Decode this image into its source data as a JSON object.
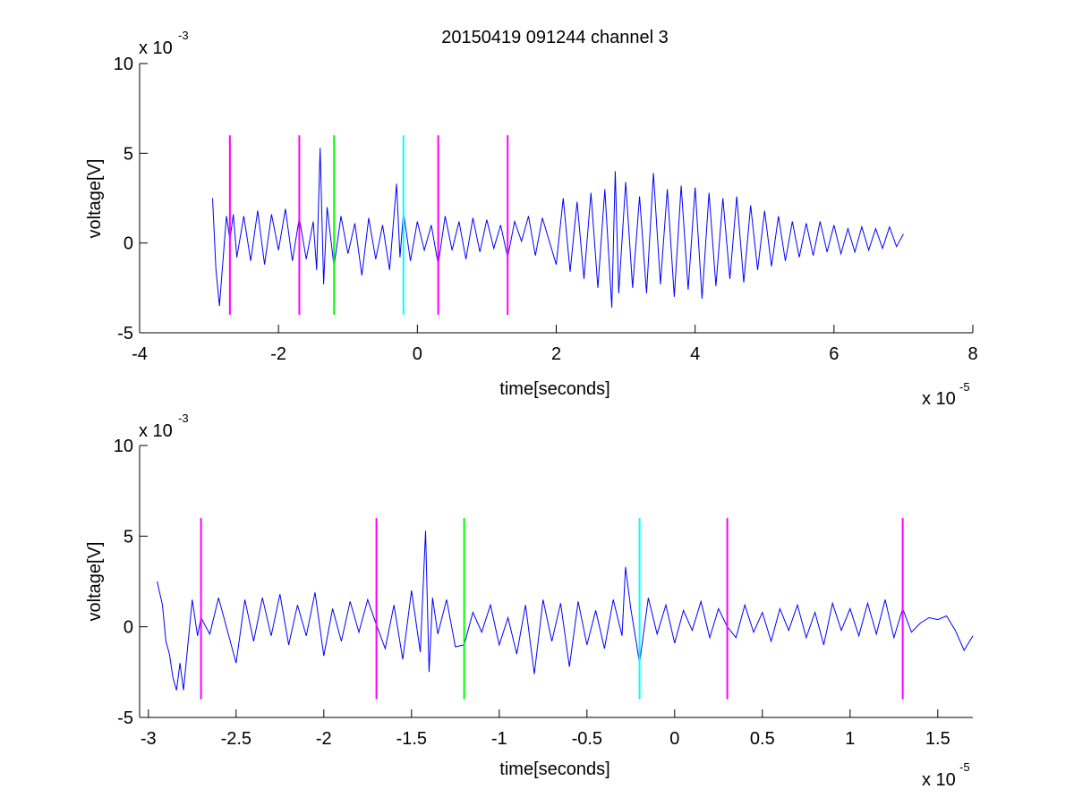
{
  "figure": {
    "title": "20150419 091244 channel 3",
    "colors": {
      "background": "#ffffff",
      "signal": "#0000ff",
      "magenta": "#ff00ff",
      "green": "#00ff00",
      "cyan": "#00ffff"
    }
  },
  "chart_data": [
    {
      "type": "line",
      "title": "20150419 091244 channel 3",
      "xlabel": "time[seconds]",
      "ylabel": "voltage[V]",
      "x_multiplier_label": "x 10",
      "x_multiplier_exp": "-5",
      "y_multiplier_label": "x 10",
      "y_multiplier_exp": "-3",
      "xlim": [
        -4,
        8
      ],
      "ylim": [
        -5,
        10
      ],
      "xticks": [
        -4,
        -2,
        0,
        2,
        4,
        6,
        8
      ],
      "xtick_labels": [
        "-4",
        "-2",
        "0",
        "2",
        "4",
        "6",
        "8"
      ],
      "yticks": [
        -5,
        0,
        5,
        10
      ],
      "ytick_labels": [
        "-5",
        "0",
        "5",
        "10"
      ],
      "grid": false,
      "series": [
        {
          "color": "#0000ff",
          "x_start": -2.95,
          "x_end": 7.0,
          "x": [
            -2.95,
            -2.9,
            -2.85,
            -2.8,
            -2.75,
            -2.7,
            -2.65,
            -2.6,
            -2.5,
            -2.4,
            -2.3,
            -2.2,
            -2.1,
            -2.0,
            -1.9,
            -1.8,
            -1.7,
            -1.6,
            -1.5,
            -1.45,
            -1.4,
            -1.35,
            -1.3,
            -1.2,
            -1.1,
            -1.0,
            -0.9,
            -0.8,
            -0.7,
            -0.6,
            -0.5,
            -0.4,
            -0.3,
            -0.25,
            -0.2,
            -0.1,
            0.0,
            0.1,
            0.2,
            0.3,
            0.4,
            0.5,
            0.6,
            0.7,
            0.8,
            0.9,
            1.0,
            1.1,
            1.2,
            1.3,
            1.4,
            1.5,
            1.6,
            1.7,
            1.8,
            2.0,
            2.1,
            2.2,
            2.3,
            2.4,
            2.5,
            2.6,
            2.7,
            2.8,
            2.85,
            2.9,
            3.0,
            3.1,
            3.2,
            3.3,
            3.4,
            3.5,
            3.6,
            3.7,
            3.8,
            3.9,
            4.0,
            4.1,
            4.2,
            4.3,
            4.4,
            4.5,
            4.6,
            4.7,
            4.8,
            4.9,
            5.0,
            5.1,
            5.2,
            5.3,
            5.4,
            5.5,
            5.6,
            5.7,
            5.8,
            5.9,
            6.0,
            6.1,
            6.2,
            6.3,
            6.4,
            6.5,
            6.6,
            6.7,
            6.8,
            6.9,
            7.0
          ],
          "values": [
            2.5,
            -1.5,
            -3.5,
            -1.0,
            1.5,
            0.2,
            1.6,
            -0.8,
            1.5,
            -1.0,
            1.8,
            -1.2,
            1.6,
            -0.4,
            1.9,
            -1.0,
            1.4,
            -0.9,
            1.2,
            -1.5,
            5.3,
            -2.3,
            2.0,
            -1.3,
            1.5,
            -0.6,
            1.1,
            -1.8,
            1.4,
            -0.9,
            1.0,
            -1.5,
            3.3,
            -0.8,
            1.7,
            -1.0,
            1.2,
            -0.4,
            1.0,
            -1.2,
            1.5,
            -0.4,
            1.2,
            -0.9,
            1.4,
            -0.5,
            1.3,
            -0.3,
            1.0,
            -0.8,
            1.2,
            0.1,
            1.5,
            -0.7,
            1.4,
            -1.2,
            2.5,
            -1.6,
            2.3,
            -2.0,
            2.8,
            -2.5,
            3.0,
            -3.6,
            4.0,
            -2.8,
            3.4,
            -2.5,
            2.6,
            -2.8,
            3.9,
            -2.3,
            3.0,
            -3.0,
            3.2,
            -2.6,
            3.1,
            -3.1,
            2.8,
            -2.4,
            2.5,
            -2.0,
            2.6,
            -2.2,
            2.1,
            -1.5,
            1.8,
            -1.3,
            1.5,
            -1.0,
            1.2,
            -0.8,
            1.1,
            -0.7,
            1.2,
            -0.5,
            1.0,
            -0.6,
            0.8,
            -0.5,
            0.9,
            -0.4,
            0.8,
            -0.3,
            0.9,
            -0.2,
            0.5
          ]
        }
      ],
      "vertical_markers": [
        {
          "x": -2.7,
          "y0": -4,
          "y1": 6,
          "color": "#ff00ff"
        },
        {
          "x": -1.7,
          "y0": -4,
          "y1": 6,
          "color": "#ff00ff"
        },
        {
          "x": -1.2,
          "y0": -4,
          "y1": 6,
          "color": "#00ff00"
        },
        {
          "x": -0.2,
          "y0": -4,
          "y1": 6,
          "color": "#00ffff"
        },
        {
          "x": 0.3,
          "y0": -4,
          "y1": 6,
          "color": "#ff00ff"
        },
        {
          "x": 1.3,
          "y0": -4,
          "y1": 6,
          "color": "#ff00ff"
        }
      ]
    },
    {
      "type": "line",
      "xlabel": "time[seconds]",
      "ylabel": "voltage[V]",
      "x_multiplier_label": "x 10",
      "x_multiplier_exp": "-5",
      "y_multiplier_label": "x 10",
      "y_multiplier_exp": "-3",
      "xlim": [
        -3.05,
        1.7
      ],
      "ylim": [
        -5,
        10
      ],
      "xticks": [
        -3,
        -2.5,
        -2,
        -1.5,
        -1,
        -0.5,
        0,
        0.5,
        1,
        1.5
      ],
      "xtick_labels": [
        "-3",
        "-2.5",
        "-2",
        "-1.5",
        "-1",
        "-0.5",
        "0",
        "0.5",
        "1",
        "1.5"
      ],
      "yticks": [
        -5,
        0,
        5,
        10
      ],
      "ytick_labels": [
        "-5",
        "0",
        "5",
        "10"
      ],
      "grid": false,
      "series": [
        {
          "color": "#0000ff",
          "x": [
            -2.95,
            -2.92,
            -2.9,
            -2.88,
            -2.86,
            -2.84,
            -2.82,
            -2.8,
            -2.75,
            -2.72,
            -2.7,
            -2.65,
            -2.6,
            -2.55,
            -2.5,
            -2.45,
            -2.4,
            -2.35,
            -2.3,
            -2.25,
            -2.2,
            -2.15,
            -2.1,
            -2.05,
            -2.0,
            -1.95,
            -1.9,
            -1.85,
            -1.8,
            -1.75,
            -1.7,
            -1.65,
            -1.6,
            -1.55,
            -1.5,
            -1.45,
            -1.42,
            -1.4,
            -1.38,
            -1.35,
            -1.3,
            -1.25,
            -1.2,
            -1.15,
            -1.1,
            -1.05,
            -1.0,
            -0.95,
            -0.9,
            -0.85,
            -0.8,
            -0.75,
            -0.7,
            -0.65,
            -0.6,
            -0.55,
            -0.5,
            -0.45,
            -0.4,
            -0.35,
            -0.3,
            -0.28,
            -0.25,
            -0.22,
            -0.2,
            -0.15,
            -0.1,
            -0.05,
            0.0,
            0.05,
            0.1,
            0.15,
            0.2,
            0.25,
            0.3,
            0.35,
            0.4,
            0.45,
            0.5,
            0.55,
            0.6,
            0.65,
            0.7,
            0.75,
            0.8,
            0.85,
            0.9,
            0.95,
            1.0,
            1.05,
            1.1,
            1.15,
            1.2,
            1.25,
            1.3,
            1.35,
            1.4,
            1.45,
            1.5,
            1.55,
            1.6,
            1.65,
            1.7
          ],
          "values": [
            2.5,
            1.2,
            -0.8,
            -1.5,
            -2.8,
            -3.5,
            -2.0,
            -3.5,
            1.5,
            -0.5,
            0.5,
            -0.4,
            1.6,
            -0.2,
            -2.0,
            1.5,
            -0.8,
            1.6,
            -0.5,
            1.8,
            -1.0,
            1.2,
            -0.5,
            1.9,
            -1.6,
            1.0,
            -0.8,
            1.4,
            -0.3,
            1.5,
            0.1,
            -1.2,
            1.2,
            -1.8,
            2.0,
            -1.4,
            5.3,
            -2.5,
            1.6,
            -0.4,
            1.5,
            -1.1,
            -1.0,
            0.8,
            -0.3,
            1.2,
            -1.0,
            0.5,
            -1.5,
            1.2,
            -2.6,
            1.5,
            -0.8,
            1.3,
            -2.2,
            1.4,
            -1.0,
            0.9,
            -1.2,
            1.5,
            -0.5,
            3.3,
            1.0,
            -0.8,
            -2.0,
            1.6,
            -0.4,
            1.2,
            -0.9,
            0.9,
            -0.2,
            1.4,
            -0.6,
            1.0,
            0.0,
            -0.6,
            1.2,
            -0.3,
            0.8,
            -0.8,
            1.0,
            -0.2,
            1.2,
            -0.6,
            0.8,
            -1.0,
            1.3,
            -0.2,
            1.0,
            -0.5,
            1.3,
            -0.4,
            1.5,
            -0.6,
            1.0,
            -0.3,
            0.2,
            0.5,
            0.4,
            0.6,
            -0.2,
            -1.3,
            -0.5
          ]
        }
      ],
      "vertical_markers": [
        {
          "x": -2.7,
          "y0": -4,
          "y1": 6,
          "color": "#ff00ff"
        },
        {
          "x": -1.7,
          "y0": -4,
          "y1": 6,
          "color": "#ff00ff"
        },
        {
          "x": -1.2,
          "y0": -4,
          "y1": 6,
          "color": "#00ff00"
        },
        {
          "x": -0.2,
          "y0": -4,
          "y1": 6,
          "color": "#00ffff"
        },
        {
          "x": 0.3,
          "y0": -4,
          "y1": 6,
          "color": "#ff00ff"
        },
        {
          "x": 1.3,
          "y0": -4,
          "y1": 6,
          "color": "#ff00ff"
        }
      ]
    }
  ]
}
